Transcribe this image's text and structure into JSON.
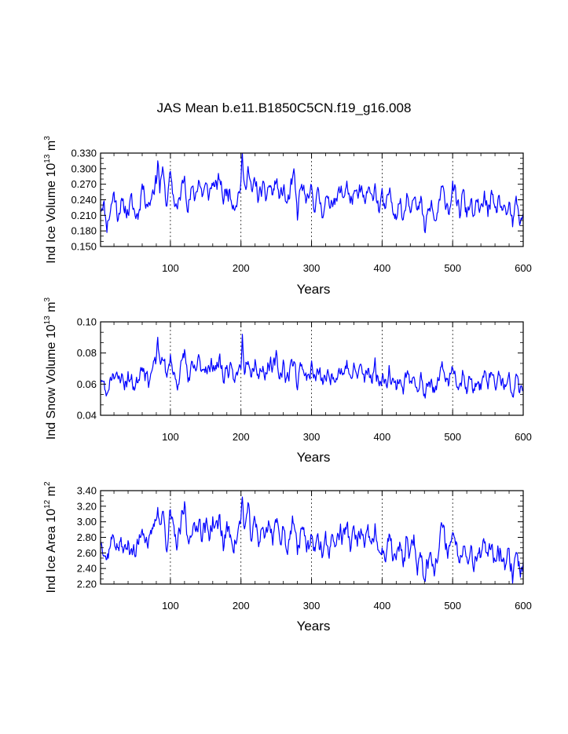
{
  "title": "JAS Mean b.e11.B1850C5CN.f19_g16.008",
  "colors": {
    "series": "#0000ff",
    "axis": "#000000",
    "gridline": "#000000"
  },
  "chart_data": [
    {
      "type": "line",
      "title": "JAS Mean b.e11.B1850C5CN.f19_g16.008",
      "xlabel": "Years",
      "ylabel_main": "Ind Ice Volume 10",
      "ylabel_exp": "13",
      "ylabel_unit": "m",
      "ylabel_unit_exp": "3",
      "xlim": [
        1,
        600
      ],
      "ylim": [
        0.15,
        0.33
      ],
      "xticks": [
        100,
        200,
        300,
        400,
        500,
        600
      ],
      "yticks": [
        0.15,
        0.18,
        0.21,
        0.24,
        0.27,
        0.3,
        0.33
      ],
      "ytick_labels": [
        "0.150",
        "0.180",
        "0.210",
        "0.240",
        "0.270",
        "0.300",
        "0.330"
      ],
      "vertical_gridlines": [
        100,
        200,
        300,
        400,
        500
      ],
      "series": [
        {
          "name": "Ind Ice Volume",
          "keypoints_x": [
            1,
            5,
            10,
            15,
            20,
            25,
            30,
            35,
            40,
            45,
            50,
            55,
            60,
            65,
            70,
            75,
            80,
            82,
            85,
            90,
            95,
            100,
            105,
            110,
            115,
            120,
            125,
            130,
            135,
            140,
            145,
            150,
            155,
            160,
            165,
            170,
            175,
            180,
            185,
            190,
            195,
            200,
            202,
            205,
            210,
            215,
            220,
            225,
            230,
            235,
            240,
            245,
            250,
            255,
            260,
            265,
            270,
            275,
            280,
            285,
            290,
            295,
            300,
            305,
            310,
            315,
            320,
            325,
            330,
            335,
            340,
            345,
            350,
            355,
            360,
            365,
            370,
            375,
            380,
            385,
            390,
            395,
            400,
            405,
            410,
            415,
            420,
            425,
            430,
            435,
            440,
            445,
            450,
            455,
            460,
            465,
            470,
            475,
            480,
            485,
            490,
            495,
            500,
            505,
            510,
            515,
            520,
            525,
            530,
            535,
            540,
            545,
            550,
            555,
            560,
            565,
            570,
            575,
            580,
            585,
            590,
            595,
            600
          ],
          "keypoints_y": [
            0.225,
            0.235,
            0.19,
            0.22,
            0.255,
            0.21,
            0.23,
            0.225,
            0.215,
            0.24,
            0.21,
            0.215,
            0.27,
            0.24,
            0.23,
            0.26,
            0.275,
            0.322,
            0.26,
            0.3,
            0.22,
            0.295,
            0.24,
            0.22,
            0.255,
            0.29,
            0.22,
            0.26,
            0.245,
            0.28,
            0.25,
            0.265,
            0.25,
            0.275,
            0.26,
            0.285,
            0.24,
            0.26,
            0.25,
            0.23,
            0.24,
            0.275,
            0.32,
            0.26,
            0.3,
            0.25,
            0.28,
            0.24,
            0.265,
            0.245,
            0.27,
            0.25,
            0.28,
            0.24,
            0.265,
            0.23,
            0.255,
            0.29,
            0.21,
            0.27,
            0.25,
            0.23,
            0.265,
            0.225,
            0.255,
            0.215,
            0.24,
            0.23,
            0.245,
            0.235,
            0.26,
            0.245,
            0.275,
            0.23,
            0.255,
            0.24,
            0.265,
            0.23,
            0.26,
            0.24,
            0.27,
            0.22,
            0.245,
            0.215,
            0.26,
            0.23,
            0.21,
            0.24,
            0.2,
            0.255,
            0.225,
            0.26,
            0.21,
            0.24,
            0.18,
            0.215,
            0.23,
            0.195,
            0.225,
            0.26,
            0.24,
            0.22,
            0.265,
            0.24,
            0.215,
            0.255,
            0.21,
            0.24,
            0.205,
            0.235,
            0.215,
            0.245,
            0.22,
            0.25,
            0.21,
            0.24,
            0.225,
            0.205,
            0.23,
            0.19,
            0.24,
            0.2,
            0.215
          ],
          "noise_amp": 0.022,
          "seed": 11
        }
      ]
    },
    {
      "type": "line",
      "xlabel": "Years",
      "ylabel_main": "Ind Snow Volume 10",
      "ylabel_exp": "13",
      "ylabel_unit": "m",
      "ylabel_unit_exp": "3",
      "xlim": [
        1,
        600
      ],
      "ylim": [
        0.04,
        0.1
      ],
      "xticks": [
        100,
        200,
        300,
        400,
        500,
        600
      ],
      "yticks": [
        0.04,
        0.06,
        0.08,
        0.1
      ],
      "ytick_labels": [
        "0.04",
        "0.06",
        "0.08",
        "0.10"
      ],
      "vertical_gridlines": [
        100,
        200,
        300,
        400,
        500
      ],
      "series": [
        {
          "name": "Ind Snow Volume",
          "keypoints_x": [
            1,
            5,
            10,
            15,
            20,
            25,
            30,
            35,
            40,
            45,
            50,
            55,
            60,
            65,
            70,
            75,
            80,
            82,
            85,
            90,
            95,
            100,
            105,
            110,
            115,
            120,
            125,
            130,
            135,
            140,
            145,
            150,
            155,
            160,
            165,
            170,
            175,
            180,
            185,
            190,
            195,
            200,
            202,
            205,
            210,
            215,
            220,
            225,
            230,
            235,
            240,
            245,
            250,
            255,
            260,
            265,
            270,
            275,
            280,
            285,
            290,
            295,
            300,
            305,
            310,
            315,
            320,
            325,
            330,
            335,
            340,
            345,
            350,
            355,
            360,
            365,
            370,
            375,
            380,
            385,
            390,
            395,
            400,
            405,
            410,
            415,
            420,
            425,
            430,
            435,
            440,
            445,
            450,
            455,
            460,
            465,
            470,
            475,
            480,
            485,
            490,
            495,
            500,
            505,
            510,
            515,
            520,
            525,
            530,
            535,
            540,
            545,
            550,
            555,
            560,
            565,
            570,
            575,
            580,
            585,
            590,
            595,
            600
          ],
          "keypoints_y": [
            0.065,
            0.06,
            0.052,
            0.065,
            0.068,
            0.062,
            0.066,
            0.06,
            0.064,
            0.062,
            0.058,
            0.065,
            0.074,
            0.066,
            0.063,
            0.07,
            0.075,
            0.092,
            0.07,
            0.08,
            0.062,
            0.078,
            0.066,
            0.06,
            0.07,
            0.082,
            0.062,
            0.07,
            0.068,
            0.075,
            0.07,
            0.072,
            0.068,
            0.074,
            0.07,
            0.076,
            0.064,
            0.07,
            0.068,
            0.063,
            0.066,
            0.074,
            0.09,
            0.07,
            0.08,
            0.066,
            0.076,
            0.064,
            0.072,
            0.066,
            0.074,
            0.068,
            0.078,
            0.064,
            0.073,
            0.062,
            0.07,
            0.078,
            0.058,
            0.074,
            0.068,
            0.063,
            0.072,
            0.062,
            0.069,
            0.06,
            0.066,
            0.063,
            0.067,
            0.065,
            0.07,
            0.066,
            0.074,
            0.063,
            0.069,
            0.066,
            0.072,
            0.062,
            0.07,
            0.064,
            0.072,
            0.06,
            0.066,
            0.058,
            0.07,
            0.062,
            0.058,
            0.065,
            0.056,
            0.068,
            0.06,
            0.069,
            0.056,
            0.064,
            0.052,
            0.058,
            0.062,
            0.054,
            0.06,
            0.07,
            0.066,
            0.06,
            0.072,
            0.065,
            0.058,
            0.068,
            0.057,
            0.064,
            0.055,
            0.063,
            0.058,
            0.066,
            0.06,
            0.068,
            0.057,
            0.065,
            0.062,
            0.056,
            0.063,
            0.052,
            0.065,
            0.055,
            0.058
          ],
          "noise_amp": 0.007,
          "seed": 23
        }
      ]
    },
    {
      "type": "line",
      "xlabel": "Years",
      "ylabel_main": "Ind Ice Area 10",
      "ylabel_exp": "12",
      "ylabel_unit": "m",
      "ylabel_unit_exp": "2",
      "xlim": [
        1,
        600
      ],
      "ylim": [
        2.2,
        3.4
      ],
      "xticks": [
        100,
        200,
        300,
        400,
        500,
        600
      ],
      "yticks": [
        2.2,
        2.4,
        2.6,
        2.8,
        3.0,
        3.2,
        3.4
      ],
      "ytick_labels": [
        "2.20",
        "2.40",
        "2.60",
        "2.80",
        "3.00",
        "3.20",
        "3.40"
      ],
      "vertical_gridlines": [
        100,
        200,
        300,
        400,
        500
      ],
      "series": [
        {
          "name": "Ind Ice Area",
          "keypoints_x": [
            1,
            5,
            10,
            15,
            20,
            25,
            30,
            35,
            40,
            45,
            50,
            55,
            60,
            65,
            70,
            75,
            80,
            82,
            85,
            90,
            95,
            100,
            105,
            110,
            115,
            120,
            125,
            130,
            135,
            140,
            145,
            150,
            155,
            160,
            165,
            170,
            175,
            180,
            185,
            190,
            195,
            200,
            202,
            205,
            210,
            215,
            220,
            225,
            230,
            235,
            240,
            245,
            250,
            255,
            260,
            265,
            270,
            275,
            280,
            285,
            290,
            295,
            300,
            305,
            310,
            315,
            320,
            325,
            330,
            335,
            340,
            345,
            350,
            355,
            360,
            365,
            370,
            375,
            380,
            385,
            390,
            395,
            400,
            405,
            410,
            415,
            420,
            425,
            430,
            435,
            440,
            445,
            450,
            455,
            460,
            465,
            470,
            475,
            480,
            485,
            490,
            495,
            500,
            505,
            510,
            515,
            520,
            525,
            530,
            535,
            540,
            545,
            550,
            555,
            560,
            565,
            570,
            575,
            580,
            585,
            590,
            595,
            600
          ],
          "keypoints_y": [
            2.75,
            2.7,
            2.5,
            2.75,
            2.8,
            2.65,
            2.72,
            2.62,
            2.7,
            2.68,
            2.55,
            2.75,
            2.95,
            2.8,
            2.7,
            2.9,
            3.05,
            3.25,
            2.95,
            3.1,
            2.7,
            3.1,
            2.85,
            2.7,
            2.95,
            3.2,
            2.7,
            2.95,
            2.85,
            3.05,
            2.85,
            2.95,
            2.85,
            3.0,
            2.9,
            3.05,
            2.7,
            2.9,
            2.85,
            2.7,
            2.8,
            3.05,
            3.3,
            2.9,
            3.15,
            2.8,
            3.0,
            2.75,
            2.95,
            2.8,
            3.0,
            2.8,
            3.05,
            2.75,
            2.95,
            2.65,
            2.85,
            3.0,
            2.55,
            2.95,
            2.8,
            2.65,
            2.85,
            2.6,
            2.8,
            2.6,
            2.75,
            2.65,
            2.8,
            2.7,
            2.9,
            2.8,
            2.95,
            2.7,
            2.85,
            2.75,
            2.9,
            2.65,
            2.85,
            2.7,
            2.9,
            2.55,
            2.7,
            2.5,
            2.8,
            2.6,
            2.5,
            2.7,
            2.45,
            2.75,
            2.55,
            2.8,
            2.4,
            2.6,
            2.3,
            2.5,
            2.6,
            2.4,
            2.6,
            2.95,
            2.75,
            2.6,
            2.9,
            2.7,
            2.55,
            2.75,
            2.5,
            2.7,
            2.45,
            2.65,
            2.55,
            2.7,
            2.5,
            2.75,
            2.5,
            2.65,
            2.6,
            2.45,
            2.6,
            2.3,
            2.65,
            2.4,
            2.45
          ],
          "noise_amp": 0.17,
          "seed": 37
        }
      ]
    }
  ]
}
